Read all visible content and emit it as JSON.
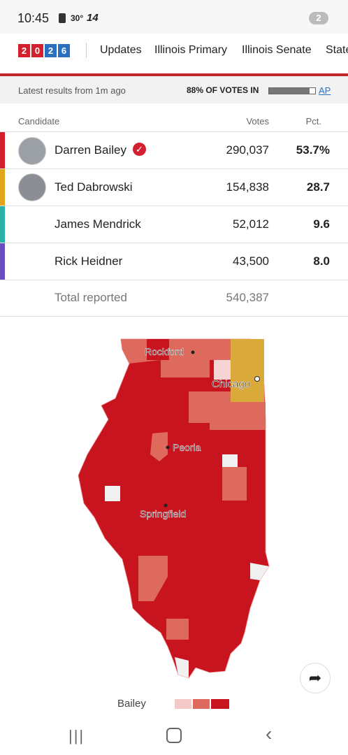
{
  "status": {
    "time": "10:45",
    "temp": "30°",
    "channel": "14",
    "badge": "2"
  },
  "nav": {
    "logo": [
      "2",
      "0",
      "2",
      "6"
    ],
    "items": [
      "Updates",
      "Illinois Primary",
      "Illinois Senate",
      "State"
    ]
  },
  "summary": {
    "updated": "Latest results from 1m ago",
    "reporting": "88% OF VOTES IN",
    "reporting_value": 88,
    "source": "AP"
  },
  "table": {
    "headers": [
      "Candidate",
      "Votes",
      "Pct."
    ],
    "rows": [
      {
        "name": "Darren Bailey",
        "votes": "290,037",
        "pct": "53.7%",
        "color": "#d3202f"
      },
      {
        "name": "Ted Dabrowski",
        "votes": "154,838",
        "pct": "28.7",
        "color": "#e0a519"
      },
      {
        "name": "James Mendrick",
        "votes": "52,012",
        "pct": "9.6",
        "color": "#2bb0a5"
      },
      {
        "name": "Rick Heidner",
        "votes": "43,500",
        "pct": "8.0",
        "color": "#6b4fbf"
      }
    ],
    "total": {
      "label": "Total reported",
      "votes": "540,387"
    }
  },
  "map": {
    "cities": [
      "Rockford",
      "Chicago",
      "Peoria",
      "Springfield"
    ]
  },
  "legend": {
    "label": "Bailey"
  }
}
